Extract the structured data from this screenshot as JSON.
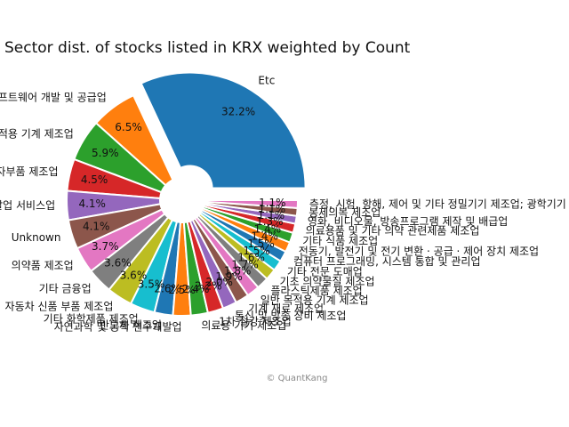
{
  "chart_data": {
    "type": "pie",
    "title": "Sector dist. of stocks listed in KRX weighted by Count",
    "donut": true,
    "slices": [
      {
        "label": "Etc",
        "value": 32.2,
        "pct_label": "32.2%",
        "color": "#1f77b4",
        "explode": true
      },
      {
        "label": "소프트웨어 개발 및 공급업",
        "value": 6.5,
        "pct_label": "6.5%",
        "color": "#ff7f0e"
      },
      {
        "label": "특수 목적용 기계 제조업",
        "value": 5.9,
        "pct_label": "5.9%",
        "color": "#2ca02c"
      },
      {
        "label": "전자부품 제조업",
        "value": 4.5,
        "pct_label": "4.5%",
        "color": "#d62728"
      },
      {
        "label": "자연과학 및 공학 연구개발업 서비스업",
        "value": 4.1,
        "pct_label": "4.1%",
        "color": "#9467bd"
      },
      {
        "label": "Unknown",
        "value": 4.1,
        "pct_label": "4.1%",
        "color": "#8c564b"
      },
      {
        "label": "의약품 제조업",
        "value": 3.7,
        "pct_label": "3.7%",
        "color": "#e377c2"
      },
      {
        "label": "기타 금융업",
        "value": 3.6,
        "pct_label": "3.6%",
        "color": "#7f7f7f"
      },
      {
        "label": "자동차 신품 부품 제조업",
        "value": 3.6,
        "pct_label": "3.6%",
        "color": "#bcbd22"
      },
      {
        "label": "기타 화학제품 제조업",
        "value": 3.5,
        "pct_label": "3.5%",
        "color": "#17becf"
      },
      {
        "label": "반도체 제조업",
        "value": 2.6,
        "pct_label": "2.6%",
        "color": "#1f77b4"
      },
      {
        "label": "자연과학 및 공학 연구개발업",
        "value": 2.5,
        "pct_label": "2.5%",
        "color": "#ff7f0e"
      },
      {
        "label": "의료용 기기 제조업",
        "value": 2.4,
        "pct_label": "2.4%",
        "color": "#2ca02c"
      },
      {
        "label": "1차 철강 제조업",
        "value": 2.2,
        "pct_label": "2.2%",
        "color": "#d62728"
      },
      {
        "label": "통신 및 방송 장비 제조업",
        "value": 2.0,
        "pct_label": "2.0%",
        "color": "#9467bd"
      },
      {
        "label": "기계 재료 제조업",
        "value": 1.9,
        "pct_label": "1.9%",
        "color": "#8c564b"
      },
      {
        "label": "일반 목적용 기계 제조업",
        "value": 1.8,
        "pct_label": "1.8%",
        "color": "#e377c2"
      },
      {
        "label": "플라스틱제품 제조업",
        "value": 1.7,
        "pct_label": "1.7%",
        "color": "#7f7f7f"
      },
      {
        "label": "기초 의약물질 제조업",
        "value": 1.6,
        "pct_label": "1.6%",
        "color": "#bcbd22"
      },
      {
        "label": "기타 전문 도매업",
        "value": 1.5,
        "pct_label": "1.5%",
        "color": "#17becf"
      },
      {
        "label": "컴퓨터 프로그래밍, 시스템 통합 및 관리업",
        "value": 1.5,
        "pct_label": "1.5%",
        "color": "#1f77b4"
      },
      {
        "label": "전동기, 발전기 및 전기 변환 · 공급 · 제어 장치 제조업",
        "value": 1.4,
        "pct_label": "1.4%",
        "color": "#ff7f0e"
      },
      {
        "label": "기타 식품 제조업",
        "value": 1.4,
        "pct_label": "1.4%",
        "color": "#2ca02c"
      },
      {
        "label": "의료용품 및 기타 의약 관련제품 제조업",
        "value": 1.3,
        "pct_label": "1.3%",
        "color": "#d62728"
      },
      {
        "label": "영화, 비디오물, 방송프로그램 제작 및 배급업",
        "value": 1.1,
        "pct_label": "1.1%",
        "color": "#9467bd"
      },
      {
        "label": "봉제의복 제조업",
        "value": 1.1,
        "pct_label": "1.1%",
        "color": "#8c564b"
      },
      {
        "label": "측정, 시험, 항해, 제어 및 기타 정밀기기 제조업; 광학기기 제외",
        "value": 1.1,
        "pct_label": "1.1%",
        "color": "#e377c2"
      }
    ]
  },
  "credit": "© QuantKang"
}
